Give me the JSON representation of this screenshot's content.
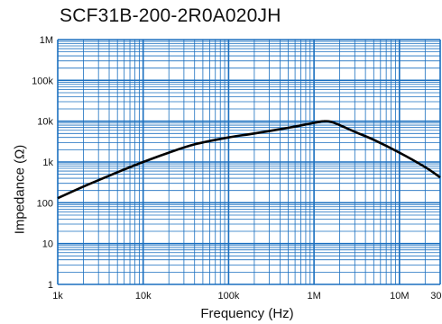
{
  "chart_data": {
    "type": "line",
    "title": "SCF31B-200-2R0A020JH",
    "xlabel": "Frequency (Hz)",
    "ylabel": "Impedance (Ω)",
    "x_scale": "log",
    "y_scale": "log",
    "xlim": [
      1000,
      30000000
    ],
    "ylim": [
      1,
      1000000
    ],
    "x_ticks": [
      {
        "value": 1000,
        "label": "1k"
      },
      {
        "value": 10000,
        "label": "10k"
      },
      {
        "value": 100000,
        "label": "100k"
      },
      {
        "value": 1000000,
        "label": "1M"
      },
      {
        "value": 10000000,
        "label": "10M"
      },
      {
        "value": 30000000,
        "label": "30M"
      }
    ],
    "y_ticks": [
      {
        "value": 1,
        "label": "1"
      },
      {
        "value": 10,
        "label": "10"
      },
      {
        "value": 100,
        "label": "100"
      },
      {
        "value": 1000,
        "label": "1k"
      },
      {
        "value": 10000,
        "label": "10k"
      },
      {
        "value": 100000,
        "label": "100k"
      },
      {
        "value": 1000000,
        "label": "1M"
      }
    ],
    "grid": true,
    "colors": {
      "grid": "#1a6fbf",
      "line": "#000000"
    },
    "series": [
      {
        "x": [
          1000,
          2000,
          5000,
          10000,
          20000,
          40000,
          100000,
          200000,
          500000,
          1000000,
          1300000,
          1700000,
          3000000,
          5000000,
          10000000,
          20000000,
          30000000
        ],
        "y": [
          130,
          250,
          560,
          1000,
          1700,
          2700,
          4000,
          5000,
          6900,
          9100,
          10000,
          9200,
          5500,
          3500,
          1700,
          750,
          420
        ]
      }
    ]
  }
}
